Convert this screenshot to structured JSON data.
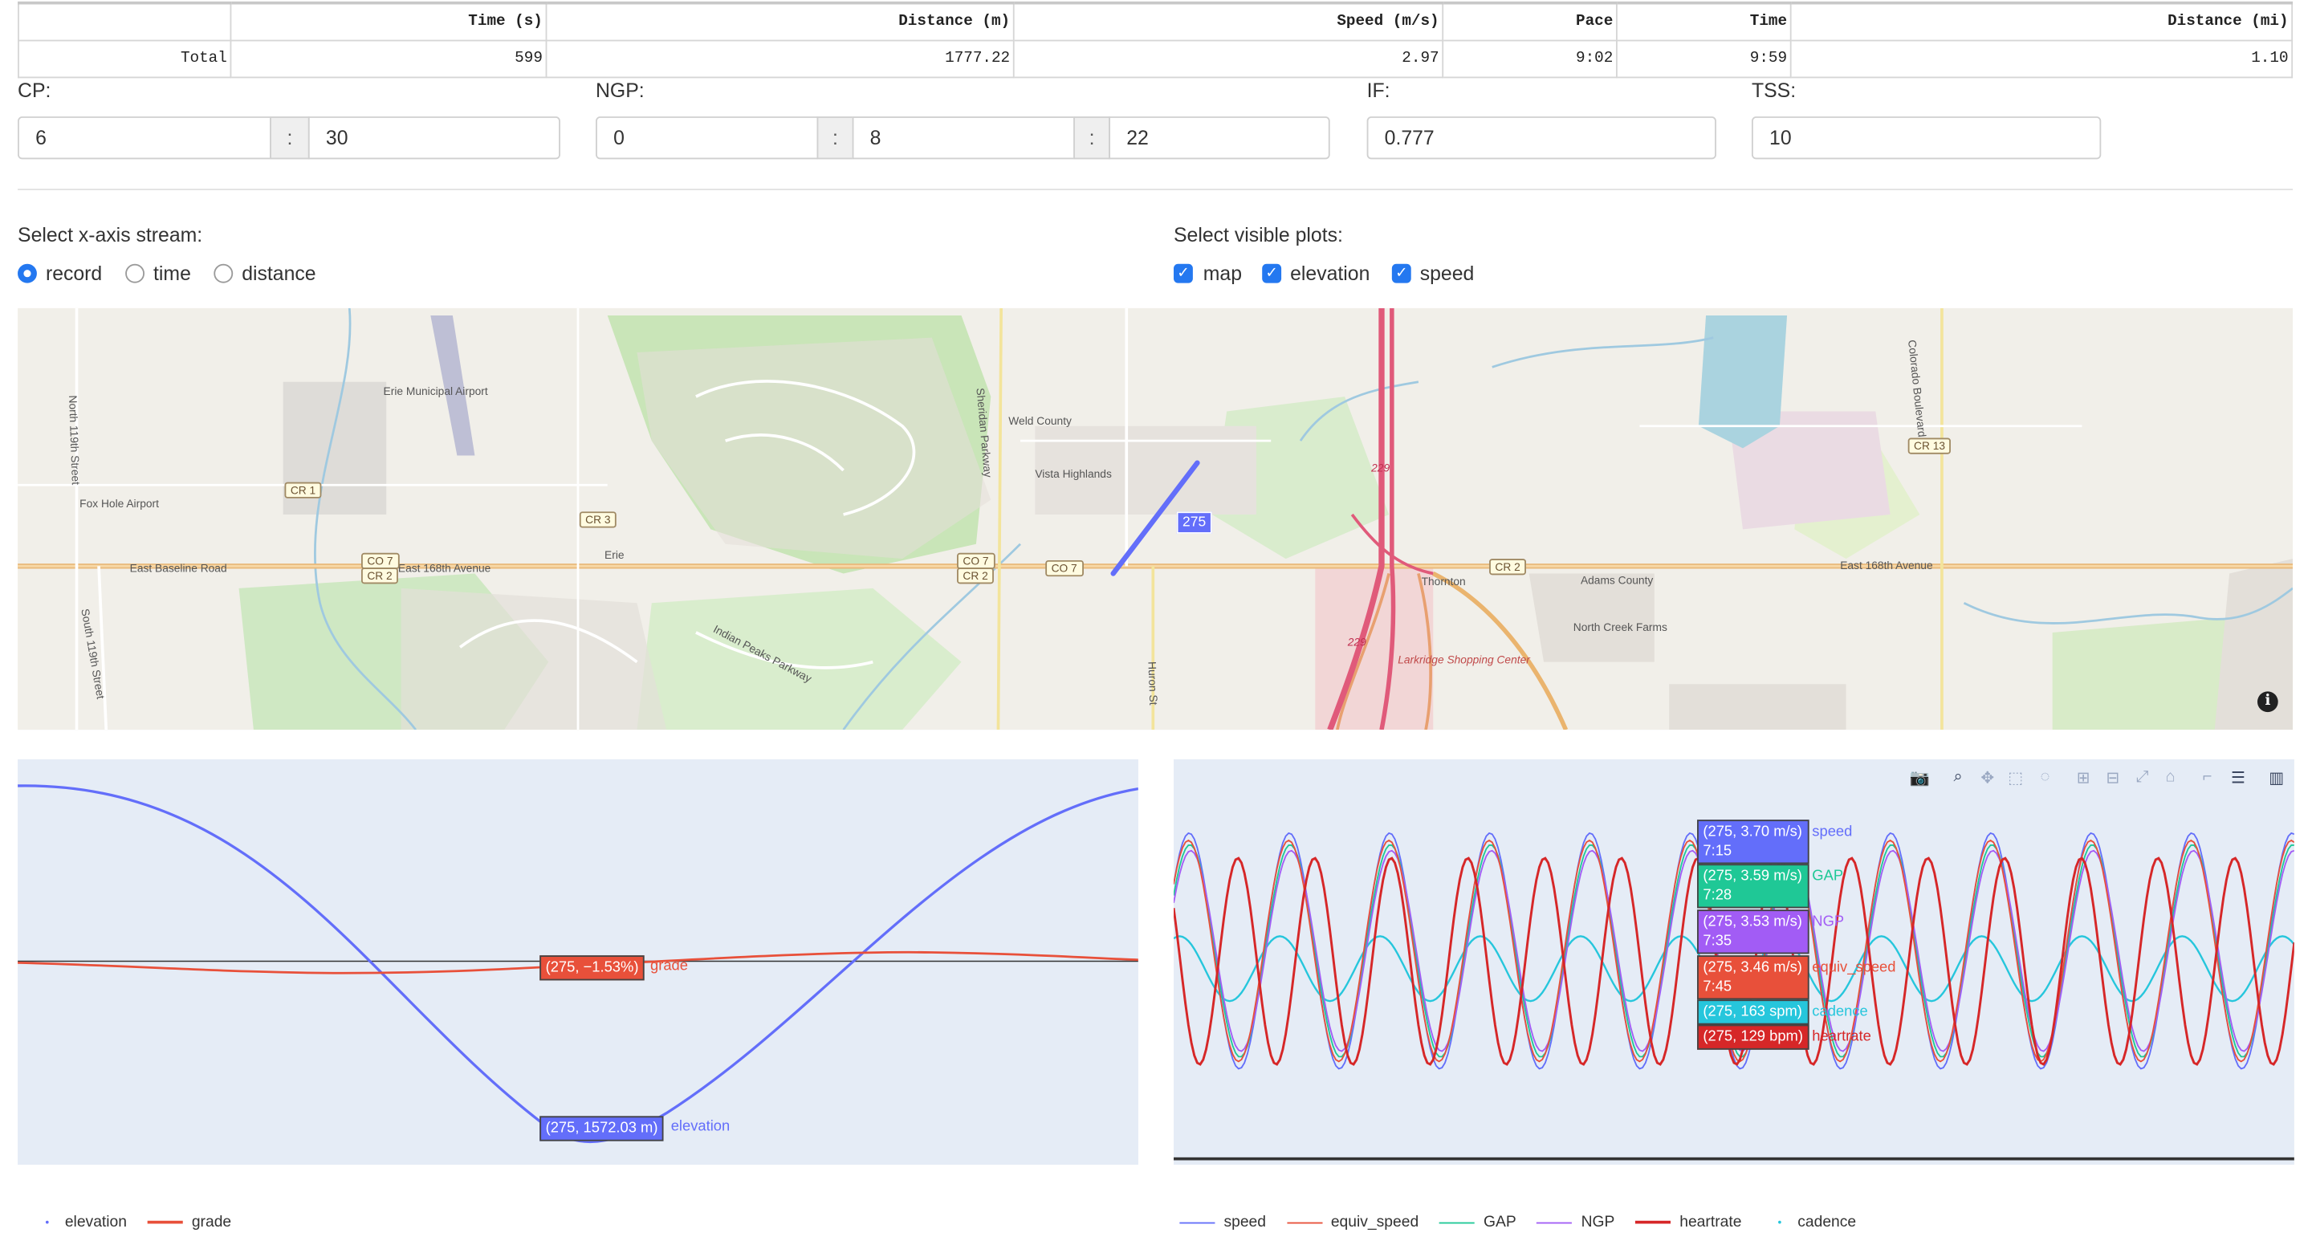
{
  "summary": {
    "headers": [
      "",
      "Time (s)",
      "Distance (m)",
      "Speed (m/s)",
      "Pace",
      "Time",
      "Distance (mi)"
    ],
    "row": [
      "Total",
      "599",
      "1777.22",
      "2.97",
      "9:02",
      "9:59",
      "1.10"
    ]
  },
  "fields": {
    "cp": {
      "label": "CP:",
      "min": "6",
      "sep": ":",
      "sec": "30"
    },
    "ngp": {
      "label": "NGP:",
      "h": "0",
      "m": "8",
      "s": "22",
      "sep": ":"
    },
    "if": {
      "label": "IF:",
      "value": "0.777"
    },
    "tss": {
      "label": "TSS:",
      "value": "10"
    }
  },
  "xaxis": {
    "label": "Select x-axis stream:",
    "options": [
      "record",
      "time",
      "distance"
    ],
    "selected": "record"
  },
  "visible": {
    "label": "Select visible plots:",
    "options": [
      "map",
      "elevation",
      "speed"
    ]
  },
  "map": {
    "marker": "275",
    "labels": {
      "erie_airport": "Erie Municipal Airport",
      "foxhole": "Fox Hole Airport",
      "weld": "Weld County",
      "vista": "Vista Highlands",
      "baseline": "East Baseline Road",
      "e168": "East 168th Avenue",
      "e168b": "East 168th Avenue",
      "erie": "Erie",
      "thornton": "Thornton",
      "adams": "Adams County",
      "northcreek": "North Creek Farms",
      "larkridge": "Larkridge Shopping Center",
      "indian": "Indian Peaks Parkway",
      "sheridan": "Sheridan Parkway",
      "colorado": "Colorado Boulevard",
      "huron": "Huron St",
      "n119": "North 119th Street",
      "s119": "South 119th Street",
      "i229a": "229",
      "i229b": "229"
    },
    "shields": {
      "cr1": "CR 1",
      "cr3": "CR 3",
      "co7a": "CO 7",
      "cr2a": "CR 2",
      "co7b": "CO 7",
      "cr2b": "CR 2",
      "co7c": "CO 7",
      "cr2c": "CR 2",
      "cr13": "CR 13"
    },
    "info_icon": "i"
  },
  "elevation_plot": {
    "hover": [
      {
        "text": "(275, −1.53%)",
        "name": "grade",
        "color": "#e8503a"
      },
      {
        "text": "(275, 1572.03 m)",
        "name": "elevation",
        "color": "#636efa"
      }
    ],
    "legend": [
      {
        "name": "elevation",
        "color": "#636efa",
        "mode": "markers"
      },
      {
        "name": "grade",
        "color": "#e8503a",
        "mode": "lines"
      }
    ]
  },
  "speed_plot": {
    "hover": [
      {
        "text": "(275, 3.70 m/s)",
        "sub": "7:15",
        "name": "speed",
        "color": "#636efa"
      },
      {
        "text": "(275, 3.59 m/s)",
        "sub": "7:28",
        "name": "GAP",
        "color": "#1fc896"
      },
      {
        "text": "(275, 3.53 m/s)",
        "sub": "7:35",
        "name": "NGP",
        "color": "#a25cf5"
      },
      {
        "text": "(275, 3.46 m/s)",
        "sub": "7:45",
        "name": "equiv_speed",
        "color": "#e8503a"
      },
      {
        "text": "(275, 163 spm)",
        "sub": "",
        "name": "cadence",
        "color": "#26c6dc"
      },
      {
        "text": "(275, 129 bpm)",
        "sub": "",
        "name": "heartrate",
        "color": "#d62728"
      }
    ],
    "legend": [
      {
        "name": "speed",
        "color": "#636efa",
        "mode": "lines"
      },
      {
        "name": "equiv_speed",
        "color": "#e8503a",
        "mode": "lines"
      },
      {
        "name": "GAP",
        "color": "#1fc896",
        "mode": "lines"
      },
      {
        "name": "NGP",
        "color": "#a25cf5",
        "mode": "lines"
      },
      {
        "name": "heartrate",
        "color": "#d62728",
        "mode": "lines"
      },
      {
        "name": "cadence",
        "color": "#26c6dc",
        "mode": "markers"
      }
    ],
    "modebar": [
      "camera-icon",
      "zoom-icon",
      "pan-icon",
      "box-select-icon",
      "lasso-icon",
      "zoom-in-icon",
      "zoom-out-icon",
      "autoscale-icon",
      "reset-axes-icon",
      "spike-lines-icon",
      "hover-closest-icon",
      "hover-compare-icon",
      "plotly-logo-icon"
    ]
  }
}
